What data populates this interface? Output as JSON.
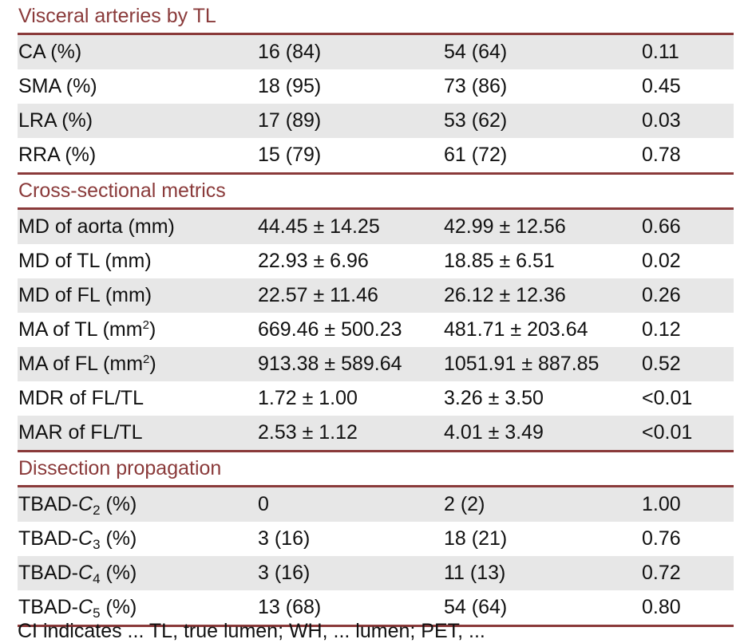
{
  "sections": [
    {
      "title": "Visceral arteries by TL",
      "rows": [
        {
          "label": "CA (%)",
          "v1": "16 (84)",
          "v2": "54 (64)",
          "p": "0.11"
        },
        {
          "label": "SMA (%)",
          "v1": "18 (95)",
          "v2": "73 (86)",
          "p": "0.45"
        },
        {
          "label": "LRA (%)",
          "v1": "17 (89)",
          "v2": "53 (62)",
          "p": "0.03"
        },
        {
          "label": "RRA (%)",
          "v1": "15 (79)",
          "v2": "61 (72)",
          "p": "0.78"
        }
      ]
    },
    {
      "title": "Cross-sectional metrics",
      "rows": [
        {
          "label": "MD of aorta (mm)",
          "v1": "44.45 ± 14.25",
          "v2": "42.99 ± 12.56",
          "p": "0.66"
        },
        {
          "label": "MD of TL (mm)",
          "v1": "22.93 ± 6.96",
          "v2": "18.85 ± 6.51",
          "p": "0.02"
        },
        {
          "label": "MD of FL (mm)",
          "v1": "22.57 ± 11.46",
          "v2": "26.12 ± 12.36",
          "p": "0.26"
        },
        {
          "label_pre": "MA of TL (mm",
          "label_sup": "2",
          "label_post": ")",
          "v1": "669.46 ± 500.23",
          "v2": "481.71 ± 203.64",
          "p": "0.12"
        },
        {
          "label_pre": "MA of FL (mm",
          "label_sup": "2",
          "label_post": ")",
          "v1": "913.38 ± 589.64",
          "v2": "1051.91 ± 887.85",
          "p": "0.52"
        },
        {
          "label": "MDR of FL/TL",
          "v1": "1.72 ± 1.00",
          "v2": "3.26 ± 3.50",
          "p": "<0.01"
        },
        {
          "label": "MAR of FL/TL",
          "v1": "2.53 ± 1.12",
          "v2": "4.01 ± 3.49",
          "p": "<0.01"
        }
      ]
    },
    {
      "title": "Dissection propagation",
      "rows": [
        {
          "label_pre": "TBAD-",
          "label_italic": "C",
          "label_sub": "2",
          "label_post": " (%)",
          "v1": "0",
          "v2": "2 (2)",
          "p": "1.00"
        },
        {
          "label_pre": "TBAD-",
          "label_italic": "C",
          "label_sub": "3",
          "label_post": " (%)",
          "v1": "3 (16)",
          "v2": "18 (21)",
          "p": "0.76"
        },
        {
          "label_pre": "TBAD-",
          "label_italic": "C",
          "label_sub": "4",
          "label_post": " (%)",
          "v1": "3 (16)",
          "v2": "11 (13)",
          "p": "0.72"
        },
        {
          "label_pre": "TBAD-",
          "label_italic": "C",
          "label_sub": "5",
          "label_post": " (%)",
          "v1": "13 (68)",
          "v2": "54 (64)",
          "p": "0.80"
        }
      ]
    }
  ],
  "footnote": "CI indicates ... TL, true lumen; WH, ... lumen; PET, ..."
}
